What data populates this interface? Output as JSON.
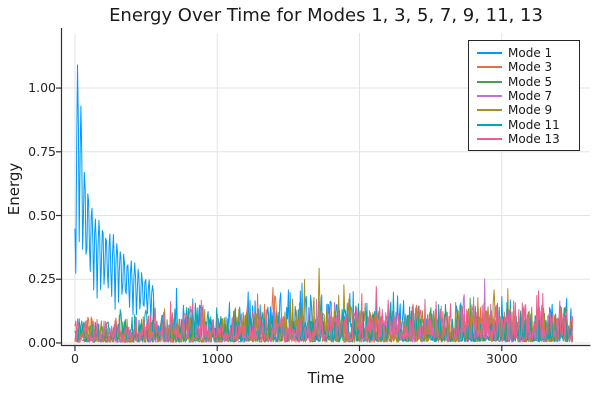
{
  "figure": {
    "background": "#FFFFFF"
  },
  "chart_data": {
    "type": "line",
    "title": "Energy Over Time for Modes 1, 3, 5, 7, 9, 11, 13",
    "xlabel": "Time",
    "ylabel": "Energy",
    "xlim": [
      -91,
      3620
    ],
    "ylim": [
      -0.008,
      1.216
    ],
    "xticks": {
      "values": [
        0,
        1000,
        2000,
        3000
      ],
      "labels": [
        "0",
        "1000",
        "2000",
        "3000"
      ]
    },
    "yticks": {
      "values": [
        0,
        0.25,
        0.5,
        0.75,
        1.0
      ],
      "labels": [
        "0.00",
        "0.25",
        "0.50",
        "0.75",
        "1.00"
      ]
    },
    "grid": true,
    "grid_color": "#E3E3E3",
    "axis_color": "#2F2F2F",
    "tick_label_color": "#252525",
    "legend": {
      "position": "top-right",
      "border_color": "#262626",
      "background": "#FFFFFF"
    },
    "sampling": {
      "t_start": 0,
      "t_end": 3500,
      "dt": 6
    },
    "description": "Seven noisy energy time-series. Mode 1 starts with a large oscillatory transient peaking at ~1.19 near t=20 and decaying to the ~0.2 noise band by t=550. All other modes fluctuate between 0 and ~0.15 with intermittent bursts to 0.2-0.34 (orange Mode 3 near t=1370, olive Mode 9 near t=1650-1950 and t=2930, purple Mode 7 near t=2870, pink Mode 13 near t=2130/2520/3280).",
    "series": [
      {
        "name": "Mode 1",
        "color": "#009AFA",
        "seed": 17,
        "floor": 0.03,
        "texture": 1.9,
        "transient": {
          "until": 560,
          "half_period": 8,
          "phase": -0.68,
          "min_frac": 0.32,
          "peaks": [
            [
              0,
              0.62
            ],
            [
              18,
              1.19
            ],
            [
              36,
              1.06
            ],
            [
              54,
              0.82
            ],
            [
              72,
              0.7
            ],
            [
              96,
              0.62
            ],
            [
              120,
              0.56
            ],
            [
              150,
              0.53
            ],
            [
              180,
              0.5
            ],
            [
              220,
              0.46
            ],
            [
              260,
              0.44
            ],
            [
              300,
              0.42
            ],
            [
              340,
              0.37
            ],
            [
              380,
              0.34
            ],
            [
              420,
              0.32
            ],
            [
              460,
              0.29
            ],
            [
              500,
              0.27
            ],
            [
              560,
              0.23
            ]
          ]
        },
        "envelope": [
          [
            560,
            0.23
          ],
          [
            700,
            0.22
          ],
          [
            850,
            0.26
          ],
          [
            1000,
            0.23
          ],
          [
            1150,
            0.22
          ],
          [
            1300,
            0.2
          ],
          [
            1450,
            0.27
          ],
          [
            1600,
            0.26
          ],
          [
            1750,
            0.21
          ],
          [
            1900,
            0.2
          ],
          [
            2050,
            0.23
          ],
          [
            2200,
            0.22
          ],
          [
            2350,
            0.2
          ],
          [
            2500,
            0.19
          ],
          [
            2650,
            0.18
          ],
          [
            2800,
            0.2
          ],
          [
            2950,
            0.22
          ],
          [
            3100,
            0.2
          ],
          [
            3250,
            0.22
          ],
          [
            3400,
            0.25
          ],
          [
            3500,
            0.23
          ]
        ]
      },
      {
        "name": "Mode 3",
        "color": "#E36F47",
        "seed": 23,
        "floor": 0.03,
        "texture": 2.3,
        "envelope": [
          [
            0,
            0.14
          ],
          [
            150,
            0.12
          ],
          [
            300,
            0.1
          ],
          [
            450,
            0.11
          ],
          [
            600,
            0.12
          ],
          [
            750,
            0.11
          ],
          [
            900,
            0.12
          ],
          [
            1050,
            0.12
          ],
          [
            1200,
            0.16
          ],
          [
            1300,
            0.26
          ],
          [
            1370,
            0.31
          ],
          [
            1440,
            0.24
          ],
          [
            1550,
            0.15
          ],
          [
            1700,
            0.13
          ],
          [
            1850,
            0.13
          ],
          [
            2000,
            0.12
          ],
          [
            2150,
            0.14
          ],
          [
            2300,
            0.17
          ],
          [
            2450,
            0.15
          ],
          [
            2600,
            0.14
          ],
          [
            2750,
            0.17
          ],
          [
            2900,
            0.2
          ],
          [
            3050,
            0.15
          ],
          [
            3200,
            0.16
          ],
          [
            3320,
            0.2
          ],
          [
            3450,
            0.16
          ],
          [
            3500,
            0.14
          ]
        ]
      },
      {
        "name": "Mode 5",
        "color": "#3EA44E",
        "seed": 31,
        "floor": 0.03,
        "texture": 2.2,
        "envelope": [
          [
            0,
            0.12
          ],
          [
            200,
            0.1
          ],
          [
            400,
            0.12
          ],
          [
            600,
            0.14
          ],
          [
            800,
            0.12
          ],
          [
            1000,
            0.12
          ],
          [
            1150,
            0.17
          ],
          [
            1300,
            0.13
          ],
          [
            1450,
            0.12
          ],
          [
            1600,
            0.14
          ],
          [
            1750,
            0.15
          ],
          [
            1900,
            0.13
          ],
          [
            2050,
            0.12
          ],
          [
            2200,
            0.14
          ],
          [
            2350,
            0.15
          ],
          [
            2500,
            0.16
          ],
          [
            2650,
            0.16
          ],
          [
            2800,
            0.2
          ],
          [
            2950,
            0.22
          ],
          [
            3100,
            0.16
          ],
          [
            3250,
            0.14
          ],
          [
            3400,
            0.16
          ],
          [
            3500,
            0.15
          ]
        ]
      },
      {
        "name": "Mode 7",
        "color": "#C371D2",
        "seed": 47,
        "floor": 0.03,
        "texture": 2.3,
        "envelope": [
          [
            0,
            0.1
          ],
          [
            250,
            0.1
          ],
          [
            500,
            0.11
          ],
          [
            750,
            0.12
          ],
          [
            1000,
            0.12
          ],
          [
            1250,
            0.14
          ],
          [
            1450,
            0.15
          ],
          [
            1600,
            0.18
          ],
          [
            1775,
            0.22
          ],
          [
            1900,
            0.14
          ],
          [
            2050,
            0.13
          ],
          [
            2200,
            0.16
          ],
          [
            2350,
            0.14
          ],
          [
            2500,
            0.15
          ],
          [
            2650,
            0.22
          ],
          [
            2780,
            0.27
          ],
          [
            2870,
            0.29
          ],
          [
            2960,
            0.18
          ],
          [
            3100,
            0.14
          ],
          [
            3250,
            0.15
          ],
          [
            3400,
            0.16
          ],
          [
            3500,
            0.14
          ]
        ]
      },
      {
        "name": "Mode 9",
        "color": "#AC8E18",
        "seed": 59,
        "floor": 0.03,
        "texture": 2.1,
        "envelope": [
          [
            0,
            0.12
          ],
          [
            200,
            0.14
          ],
          [
            400,
            0.12
          ],
          [
            600,
            0.16
          ],
          [
            800,
            0.17
          ],
          [
            1000,
            0.14
          ],
          [
            1200,
            0.14
          ],
          [
            1400,
            0.16
          ],
          [
            1550,
            0.2
          ],
          [
            1650,
            0.32
          ],
          [
            1720,
            0.34
          ],
          [
            1800,
            0.22
          ],
          [
            1900,
            0.3
          ],
          [
            1990,
            0.25
          ],
          [
            2100,
            0.16
          ],
          [
            2250,
            0.14
          ],
          [
            2400,
            0.2
          ],
          [
            2550,
            0.16
          ],
          [
            2700,
            0.18
          ],
          [
            2850,
            0.22
          ],
          [
            2930,
            0.28
          ],
          [
            3020,
            0.24
          ],
          [
            3150,
            0.16
          ],
          [
            3300,
            0.22
          ],
          [
            3420,
            0.18
          ],
          [
            3500,
            0.16
          ]
        ]
      },
      {
        "name": "Mode 11",
        "color": "#00A9AD",
        "seed": 71,
        "floor": 0.04,
        "texture": 1.9,
        "envelope": [
          [
            0,
            0.12
          ],
          [
            200,
            0.15
          ],
          [
            400,
            0.16
          ],
          [
            600,
            0.18
          ],
          [
            800,
            0.2
          ],
          [
            1000,
            0.16
          ],
          [
            1200,
            0.16
          ],
          [
            1400,
            0.14
          ],
          [
            1600,
            0.16
          ],
          [
            1800,
            0.15
          ],
          [
            2000,
            0.18
          ],
          [
            2180,
            0.23
          ],
          [
            2350,
            0.17
          ],
          [
            2500,
            0.18
          ],
          [
            2650,
            0.17
          ],
          [
            2800,
            0.16
          ],
          [
            2950,
            0.18
          ],
          [
            3100,
            0.17
          ],
          [
            3250,
            0.16
          ],
          [
            3400,
            0.21
          ],
          [
            3500,
            0.18
          ]
        ]
      },
      {
        "name": "Mode 13",
        "color": "#ED5F92",
        "seed": 89,
        "floor": 0.06,
        "texture": 1.6,
        "envelope": [
          [
            0,
            0.12
          ],
          [
            200,
            0.13
          ],
          [
            400,
            0.12
          ],
          [
            600,
            0.15
          ],
          [
            810,
            0.24
          ],
          [
            950,
            0.15
          ],
          [
            1100,
            0.13
          ],
          [
            1250,
            0.14
          ],
          [
            1400,
            0.14
          ],
          [
            1550,
            0.13
          ],
          [
            1700,
            0.15
          ],
          [
            1850,
            0.17
          ],
          [
            1960,
            0.2
          ],
          [
            2130,
            0.25
          ],
          [
            2300,
            0.15
          ],
          [
            2450,
            0.22
          ],
          [
            2520,
            0.27
          ],
          [
            2650,
            0.17
          ],
          [
            2800,
            0.2
          ],
          [
            2950,
            0.18
          ],
          [
            3080,
            0.24
          ],
          [
            3180,
            0.2
          ],
          [
            3280,
            0.27
          ],
          [
            3400,
            0.18
          ],
          [
            3500,
            0.16
          ]
        ]
      }
    ]
  }
}
